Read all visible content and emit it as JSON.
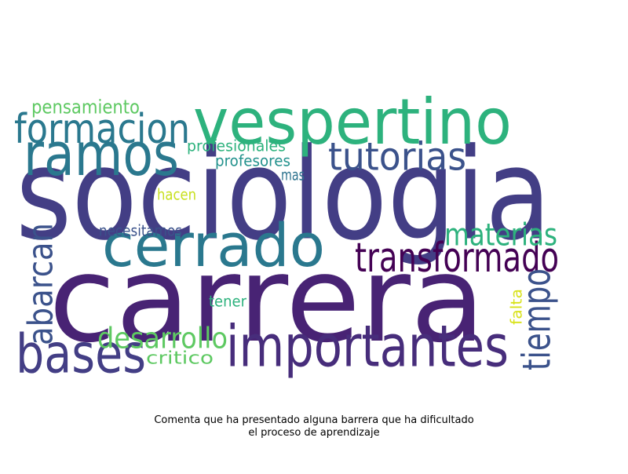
{
  "words": [
    {
      "text": "sociologia",
      "color": "#433e85"
    },
    {
      "text": "carrera",
      "color": "#482374"
    },
    {
      "text": "vespertino",
      "color": "#2db27d"
    },
    {
      "text": "ramos",
      "color": "#2a788e"
    },
    {
      "text": "formacion",
      "color": "#2a788e"
    },
    {
      "text": "cerrado",
      "color": "#2a788e"
    },
    {
      "text": "importantes",
      "color": "#472d7b"
    },
    {
      "text": "bases",
      "color": "#433e85"
    },
    {
      "text": "tutorias",
      "color": "#3b528b"
    },
    {
      "text": "transformado",
      "color": "#440154"
    },
    {
      "text": "materias",
      "color": "#2db27d"
    },
    {
      "text": "abarcan",
      "color": "#3b528b"
    },
    {
      "text": "tiempo",
      "color": "#3b528b"
    },
    {
      "text": "desarrollo",
      "color": "#5ec962"
    },
    {
      "text": "pensamiento",
      "color": "#5ec962"
    },
    {
      "text": "profesionales",
      "color": "#2db27d"
    },
    {
      "text": "profesores",
      "color": "#21918c"
    },
    {
      "text": "mas",
      "color": "#2c728e"
    },
    {
      "text": "hacen",
      "color": "#c8e020"
    },
    {
      "text": "necesitamos",
      "color": "#3b528b"
    },
    {
      "text": "tener",
      "color": "#2db27d"
    },
    {
      "text": "critico",
      "color": "#5ec962"
    },
    {
      "text": "falta",
      "color": "#d8e219"
    }
  ],
  "caption": {
    "line1": "Comenta que ha presentado alguna barrera que ha dificultado",
    "line2": "el proceso de aprendizaje"
  }
}
